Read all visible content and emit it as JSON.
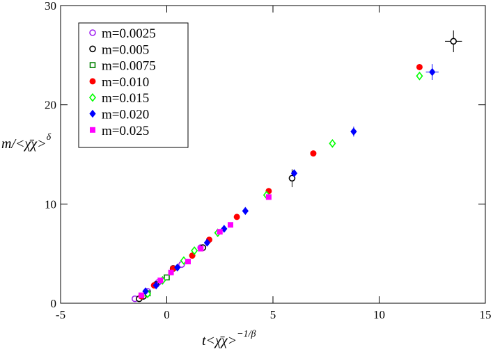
{
  "chart_data": {
    "type": "scatter",
    "xlabel": {
      "text": "t<χ̄χ>",
      "sup": "−1/β"
    },
    "ylabel": {
      "text": "m/<χ̄χ>",
      "sup": "δ"
    },
    "xlim": [
      -5,
      15
    ],
    "xticks": [
      -5,
      0,
      5,
      10,
      15
    ],
    "ylim": [
      0,
      30
    ],
    "yticks": [
      0,
      10,
      20,
      30
    ],
    "legend": "upper left",
    "series": [
      {
        "name": "m=0.0025",
        "color": "#a020f0",
        "marker": "circle-open",
        "x": [
          -1.5,
          -0.9,
          -0.4,
          0.3,
          0.7,
          1.6
        ],
        "y": [
          0.45,
          1.2,
          2.1,
          3.5,
          3.9,
          5.6
        ]
      },
      {
        "name": "m=0.005",
        "color": "#000000",
        "marker": "circle-open",
        "x": [
          -1.3,
          -1.1,
          -0.5,
          0.3,
          1.7,
          5.9,
          13.5
        ],
        "y": [
          0.45,
          0.7,
          1.9,
          3.5,
          5.6,
          12.6,
          26.4
        ],
        "yerr": [
          null,
          null,
          null,
          null,
          null,
          0.9,
          1.1
        ],
        "xerr": [
          null,
          null,
          null,
          null,
          null,
          null,
          0.4
        ]
      },
      {
        "name": "m=0.0075",
        "color": "#008000",
        "marker": "square-open",
        "x": [
          -0.9,
          0.0
        ],
        "y": [
          1.0,
          2.6
        ]
      },
      {
        "name": "m=0.010",
        "color": "#ff0000",
        "marker": "circle",
        "x": [
          -1.2,
          -0.6,
          0.3,
          1.2,
          2.0,
          3.3,
          4.8,
          6.9,
          11.9
        ],
        "y": [
          0.7,
          1.8,
          3.5,
          4.8,
          6.4,
          8.7,
          11.3,
          15.1,
          23.8
        ]
      },
      {
        "name": "m=0.015",
        "color": "#00ff00",
        "marker": "diamond-open",
        "x": [
          -0.9,
          -0.2,
          0.8,
          1.3,
          2.4,
          4.7,
          7.8,
          11.9
        ],
        "y": [
          0.95,
          2.3,
          4.3,
          5.3,
          7.1,
          10.9,
          16.1,
          22.9
        ]
      },
      {
        "name": "m=0.020",
        "color": "#0000ff",
        "marker": "diamond",
        "x": [
          -1.0,
          -0.5,
          0.5,
          1.9,
          2.7,
          3.7,
          6.0,
          8.8,
          12.5
        ],
        "y": [
          1.2,
          1.8,
          3.6,
          6.1,
          7.5,
          9.3,
          13.1,
          17.3,
          23.3
        ],
        "yerr": [
          null,
          null,
          null,
          null,
          null,
          null,
          null,
          0.5,
          0.8
        ],
        "xerr": [
          null,
          null,
          null,
          null,
          null,
          null,
          null,
          null,
          0.3
        ]
      },
      {
        "name": "m=0.025",
        "color": "#ff00ff",
        "marker": "square",
        "x": [
          -1.2,
          -0.3,
          0.2,
          1.0,
          1.6,
          2.5,
          3.0,
          4.8
        ],
        "y": [
          0.8,
          2.3,
          3.1,
          4.2,
          5.5,
          7.2,
          7.9,
          10.7
        ]
      }
    ]
  }
}
